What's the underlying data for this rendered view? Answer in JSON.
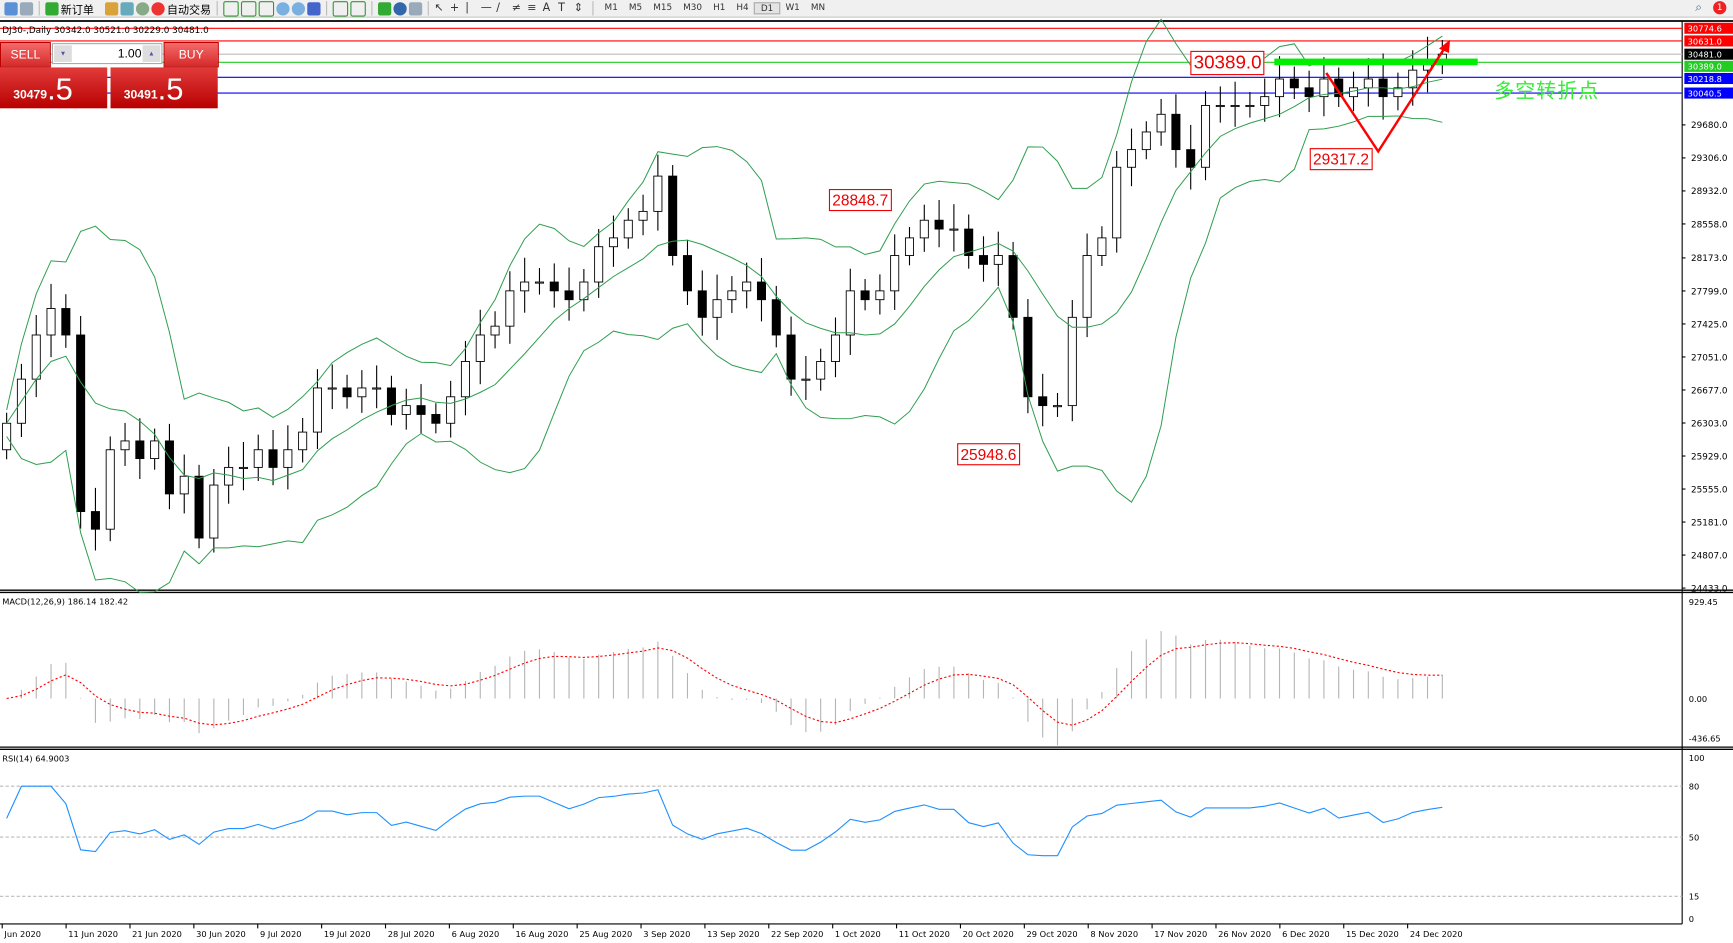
{
  "toolbar": {
    "new_order": "新订单",
    "auto_trading": "自动交易",
    "timeframes": [
      "M1",
      "M5",
      "M15",
      "M30",
      "H1",
      "H4",
      "D1",
      "W1",
      "MN"
    ],
    "active_timeframe": "D1",
    "notification_count": "1"
  },
  "chart_title": "DJ30-,Daily  30342.0 30521.0 30229.0 30481.0",
  "order_panel": {
    "sell_label": "SELL",
    "buy_label": "BUY",
    "lot": "1.00",
    "sell_price_main": "30479",
    "sell_price_frac": ".5",
    "buy_price_main": "30491",
    "buy_price_frac": ".5"
  },
  "annotations": {
    "level_label": "30389.0",
    "high_label": "28848.7",
    "low_label": "25948.6",
    "v_low_label": "29317.2",
    "turning_point_text": "多空转折点"
  },
  "colors": {
    "bull": "#ffffff",
    "bear": "#000000",
    "bands": "#2e9e4e",
    "macd_hist": "#b4b4b4",
    "macd_signal": "#ff0000",
    "rsi": "#1e90ff",
    "annotation": "#ff0000",
    "zone": "#00ee00"
  },
  "chart_data": [
    {
      "type": "candlestick",
      "symbol": "DJ30-",
      "timeframe": "Daily",
      "ohlc_last": {
        "open": 30342.0,
        "high": 30521.0,
        "low": 30229.0,
        "close": 30481.0
      },
      "closes": [
        26300,
        26800,
        27300,
        27600,
        27300,
        25300,
        25100,
        26000,
        26100,
        25900,
        26100,
        25500,
        25700,
        25000,
        25600,
        25800,
        25800,
        26000,
        25800,
        26000,
        26200,
        26700,
        26700,
        26600,
        26700,
        26700,
        26400,
        26500,
        26400,
        26300,
        26600,
        27000,
        27300,
        27400,
        27800,
        27900,
        27900,
        27800,
        27700,
        27900,
        28300,
        28400,
        28600,
        28700,
        29100,
        28200,
        27800,
        27500,
        27700,
        27800,
        27900,
        27700,
        27300,
        26800,
        26800,
        27000,
        27300,
        27800,
        27700,
        27800,
        28200,
        28400,
        28600,
        28500,
        28500,
        28200,
        28100,
        28200,
        27500,
        26600,
        26500,
        26500,
        27500,
        28200,
        28400,
        29200,
        29400,
        29600,
        29800,
        29400,
        29200,
        29900,
        29900,
        29900,
        29900,
        30000,
        30200,
        30100,
        30000,
        30200,
        30000,
        30100,
        30200,
        30000,
        30100,
        30300,
        30400,
        30481
      ],
      "overlay": "Bollinger Bands",
      "y_ticks": [
        "29680.0",
        "29306.0",
        "28932.0",
        "28558.0",
        "28173.0",
        "27799.0",
        "27425.0",
        "27051.0",
        "26677.0",
        "26303.0",
        "25929.0",
        "25555.0",
        "25181.0",
        "24807.0",
        "24433.0"
      ],
      "ylim": [
        24433,
        30850
      ],
      "x_ticks": [
        "Jun 2020",
        "11 Jun 2020",
        "21 Jun 2020",
        "30 Jun 2020",
        "9 Jul 2020",
        "19 Jul 2020",
        "28 Jul 2020",
        "6 Aug 2020",
        "16 Aug 2020",
        "25 Aug 2020",
        "3 Sep 2020",
        "13 Sep 2020",
        "22 Sep 2020",
        "1 Oct 2020",
        "11 Oct 2020",
        "20 Oct 2020",
        "29 Oct 2020",
        "8 Nov 2020",
        "17 Nov 2020",
        "26 Nov 2020",
        "6 Dec 2020",
        "15 Dec 2020",
        "24 Dec 2020"
      ],
      "price_lines": [
        {
          "value": "30774.6",
          "color": "#ff0000"
        },
        {
          "value": "30631.0",
          "color": "#ff0000"
        },
        {
          "value": "30481.0",
          "color": "#000000"
        },
        {
          "value": "30389.0",
          "color": "#22cc22"
        },
        {
          "value": "30218.8",
          "color": "#0000ff"
        },
        {
          "value": "30040.5",
          "color": "#0000ff"
        }
      ]
    },
    {
      "type": "bar+line",
      "name": "MACD(12,26,9) 186.14 182.42",
      "y_ticks": [
        "929.45",
        "0.00",
        "-436.65"
      ],
      "ylim": [
        -436.65,
        929.45
      ]
    },
    {
      "type": "line",
      "name": "RSI(14) 64.9003",
      "y_ticks": [
        "100",
        "80",
        "50",
        "15",
        "0"
      ],
      "ylim": [
        0,
        100
      ],
      "levels": [
        80,
        50,
        15
      ]
    }
  ]
}
